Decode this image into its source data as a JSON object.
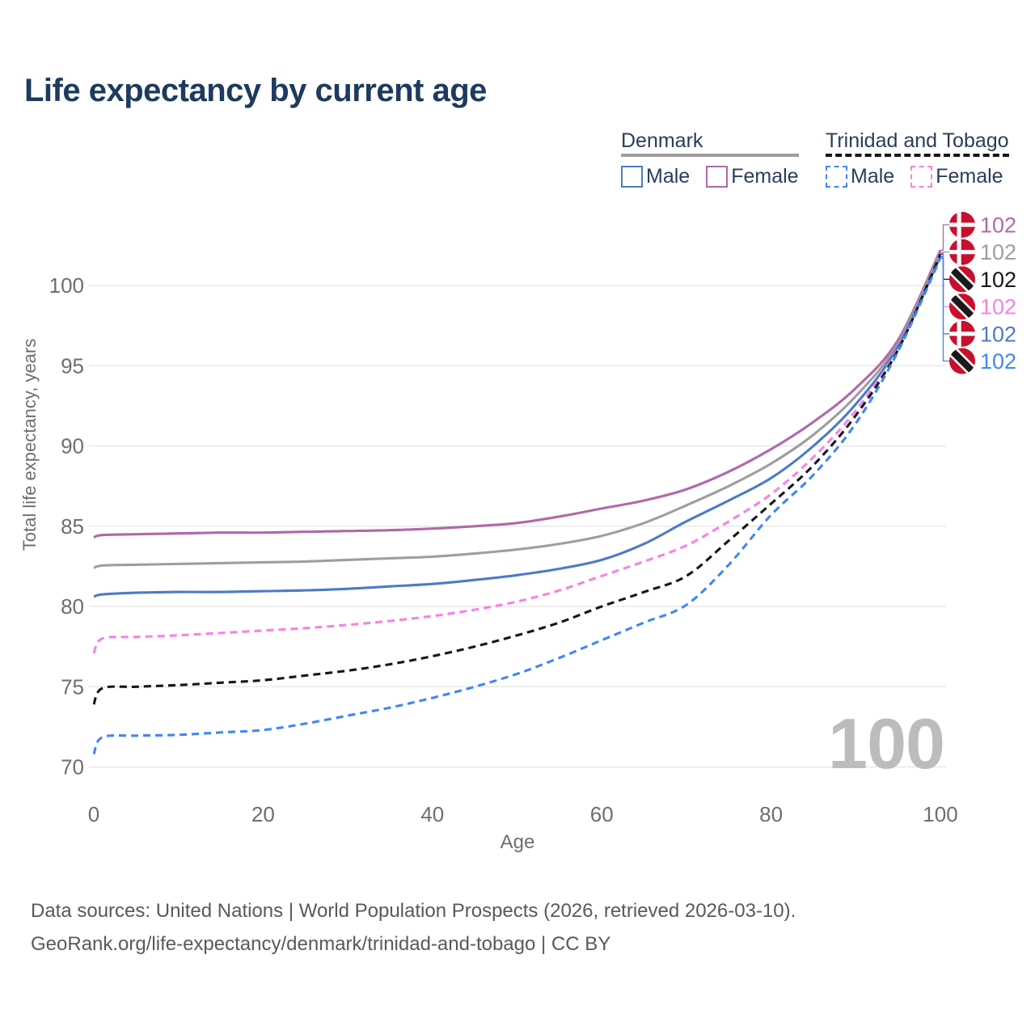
{
  "title": "Life expectancy by current age",
  "legend": {
    "groups": [
      {
        "id": "denmark",
        "label": "Denmark",
        "line_style": "solid",
        "line_color": "#9e9e9e",
        "items": [
          {
            "id": "male",
            "label": "Male",
            "color": "#4b7bc8",
            "box_style": "solid"
          },
          {
            "id": "female",
            "label": "Female",
            "color": "#b168a9",
            "box_style": "solid"
          }
        ]
      },
      {
        "id": "trinidad-and-tobago",
        "label": "Trinidad and Tobago",
        "line_style": "dashed",
        "line_color": "#161616",
        "items": [
          {
            "id": "male",
            "label": "Male",
            "color": "#3f87f5",
            "box_style": "dashed"
          },
          {
            "id": "female",
            "label": "Female",
            "color": "#f981e5",
            "box_style": "dashed"
          }
        ]
      }
    ]
  },
  "chart_data": {
    "type": "line",
    "title": "Life expectancy by current age",
    "xlabel": "Age",
    "ylabel": "Total life expectancy, years",
    "x_ticks": [
      0,
      20,
      40,
      60,
      80,
      100
    ],
    "y_ticks": [
      70,
      75,
      80,
      85,
      90,
      95,
      100
    ],
    "xlim": [
      0,
      100
    ],
    "ylim": [
      70,
      102.5
    ],
    "grid": true,
    "legend_position": "top-right",
    "age_indicator": "100",
    "ages": [
      0,
      1,
      5,
      10,
      15,
      20,
      25,
      30,
      35,
      40,
      45,
      50,
      55,
      60,
      65,
      70,
      75,
      80,
      85,
      90,
      95,
      100
    ],
    "series": [
      {
        "name": "Denmark Female",
        "country": "denmark",
        "sex": "female",
        "color": "#b168a9",
        "dashed": false,
        "end_label": "102",
        "values": [
          84.3,
          84.45,
          84.5,
          84.55,
          84.6,
          84.6,
          84.65,
          84.7,
          84.75,
          84.85,
          85.0,
          85.2,
          85.6,
          86.1,
          86.6,
          87.3,
          88.4,
          89.8,
          91.5,
          93.6,
          96.6,
          102.2
        ]
      },
      {
        "name": "Denmark",
        "country": "denmark",
        "sex": "all",
        "color": "#9e9e9e",
        "dashed": false,
        "end_label": "102",
        "values": [
          82.4,
          82.55,
          82.6,
          82.65,
          82.7,
          82.75,
          82.8,
          82.9,
          83.0,
          83.1,
          83.3,
          83.55,
          83.9,
          84.4,
          85.2,
          86.3,
          87.5,
          88.9,
          90.7,
          93.1,
          96.4,
          102.05
        ]
      },
      {
        "name": "Denmark Male",
        "country": "denmark",
        "sex": "male",
        "color": "#4b7bc8",
        "dashed": false,
        "end_label": "102",
        "values": [
          80.6,
          80.75,
          80.85,
          80.9,
          80.9,
          80.95,
          81.0,
          81.1,
          81.25,
          81.4,
          81.65,
          81.95,
          82.35,
          82.9,
          83.9,
          85.3,
          86.6,
          88.0,
          90.0,
          92.6,
          96.2,
          101.8
        ]
      },
      {
        "name": "Trinidad and Tobago Female",
        "country": "trinidad-and-tobago",
        "sex": "female",
        "color": "#f981e5",
        "dashed": true,
        "end_label": "102",
        "values": [
          77.1,
          78.0,
          78.1,
          78.2,
          78.35,
          78.5,
          78.65,
          78.85,
          79.1,
          79.4,
          79.8,
          80.3,
          81.0,
          81.9,
          82.8,
          83.8,
          85.3,
          87.0,
          89.3,
          92.2,
          96.1,
          101.9
        ]
      },
      {
        "name": "Trinidad and Tobago",
        "country": "trinidad-and-tobago",
        "sex": "all",
        "color": "#161616",
        "dashed": true,
        "end_label": "102",
        "values": [
          73.9,
          74.9,
          75.0,
          75.1,
          75.25,
          75.4,
          75.7,
          76.0,
          76.4,
          76.9,
          77.5,
          78.2,
          79.0,
          80.0,
          80.9,
          81.9,
          84.1,
          86.4,
          88.8,
          91.9,
          96.0,
          101.95
        ]
      },
      {
        "name": "Trinidad and Tobago Male",
        "country": "trinidad-and-tobago",
        "sex": "male",
        "color": "#3f87f5",
        "dashed": true,
        "end_label": "102",
        "values": [
          70.8,
          71.85,
          71.95,
          72.0,
          72.15,
          72.3,
          72.7,
          73.2,
          73.7,
          74.3,
          75.0,
          75.8,
          76.8,
          77.9,
          79.0,
          80.1,
          82.6,
          85.7,
          88.2,
          91.4,
          95.9,
          101.7
        ]
      }
    ],
    "flag_colors": {
      "red": "#c8102e",
      "denmark_cross": "#ffffff",
      "tt_band": "#1a1a1a",
      "tt_band_edge": "#ffffff"
    }
  },
  "footer": {
    "line1": "Data sources: United Nations | World Population Prospects (2026, retrieved 2026-03-10).",
    "line2": "GeoRank.org/life-expectancy/denmark/trinidad-and-tobago | CC BY"
  }
}
